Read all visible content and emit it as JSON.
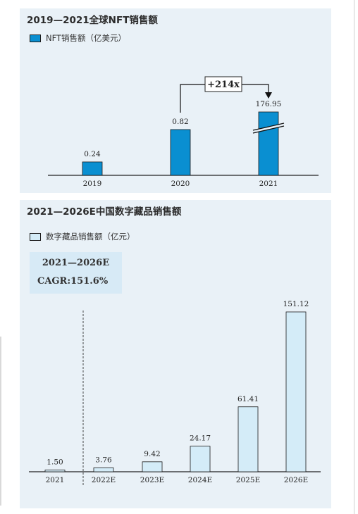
{
  "colors": {
    "panel_bg": "#e9f1f7",
    "nft_bar": "#0a8fd1",
    "digital_bar": "#d4ecf8",
    "bar_stroke": "#1a1a1a"
  },
  "panel1": {
    "title": "2019—2021全球NFT销售额",
    "legend": "NFT销售额（亿美元）",
    "annotation": "+214x",
    "break_marker": "axis-break"
  },
  "panel2": {
    "title": "2021—2026E中国数字藏品销售额",
    "legend": "数字藏品销售额（亿元）",
    "cagr_line1": "2021—2026E",
    "cagr_line2": "CAGR:151.6%"
  },
  "chart_data": [
    {
      "type": "bar",
      "title": "2019—2021全球NFT销售额",
      "categories": [
        "2019",
        "2020",
        "2021"
      ],
      "series": [
        {
          "name": "NFT销售额（亿美元）",
          "values": [
            0.24,
            0.82,
            176.95
          ]
        }
      ],
      "value_labels": [
        "0.24",
        "0.82",
        "176.95"
      ],
      "axis_break": true,
      "annotation": "+214x",
      "grid": false,
      "legend_position": "top-left"
    },
    {
      "type": "bar",
      "title": "2021—2026E中国数字藏品销售额",
      "categories": [
        "2021",
        "2022E",
        "2023E",
        "2024E",
        "2025E",
        "2026E"
      ],
      "series": [
        {
          "name": "数字藏品销售额（亿元）",
          "values": [
            1.5,
            3.76,
            9.42,
            24.17,
            61.41,
            151.12
          ]
        }
      ],
      "value_labels": [
        "1.50",
        "3.76",
        "9.42",
        "24.17",
        "61.41",
        "151.12"
      ],
      "ylim": [
        0,
        160
      ],
      "annotation": "2021—2026E CAGR:151.6%",
      "grid": false,
      "legend_position": "top-left"
    }
  ]
}
